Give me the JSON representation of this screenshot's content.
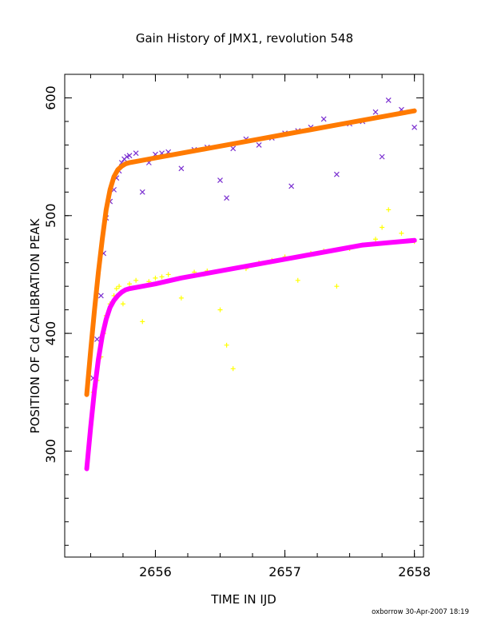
{
  "title": "Gain History of JMX1, revolution 548",
  "footer": "oxborrow 30-Apr-2007 18:19",
  "chart_data": {
    "type": "scatter",
    "title": "Gain History of JMX1, revolution 548",
    "xlabel": "TIME IN IJD",
    "ylabel": "POSITION OF Cd CALIBRATION PEAK",
    "xlim": [
      2655.3,
      2658.07
    ],
    "ylim": [
      210,
      620
    ],
    "xticks": [
      2656,
      2657,
      2658
    ],
    "yticks": [
      300,
      400,
      500,
      600
    ],
    "xtick_labels": [
      "2656",
      "2657",
      "2658"
    ],
    "ytick_labels": [
      "300",
      "400",
      "500",
      "600"
    ],
    "x_minor_step": 0.25,
    "y_minor_step": 20,
    "grid": false,
    "series": [
      {
        "marker": "x",
        "color": "#7a2fd0",
        "x": [
          2655.52,
          2655.55,
          2655.58,
          2655.6,
          2655.62,
          2655.65,
          2655.68,
          2655.7,
          2655.72,
          2655.74,
          2655.76,
          2655.78,
          2655.8,
          2655.85,
          2655.9,
          2655.95,
          2656.0,
          2656.05,
          2656.1,
          2656.2,
          2656.3,
          2656.4,
          2656.5,
          2656.55,
          2656.6,
          2656.7,
          2656.8,
          2656.9,
          2657.0,
          2657.05,
          2657.1,
          2657.2,
          2657.3,
          2657.4,
          2657.5,
          2657.6,
          2657.7,
          2657.75,
          2657.8,
          2657.9,
          2658.0
        ],
        "y": [
          362,
          395,
          432,
          468,
          498,
          512,
          522,
          532,
          538,
          545,
          548,
          550,
          551,
          553,
          520,
          545,
          552,
          553,
          554,
          540,
          556,
          558,
          530,
          515,
          557,
          565,
          560,
          566,
          570,
          525,
          572,
          575,
          582,
          535,
          578,
          580,
          588,
          550,
          598,
          590,
          575
        ]
      },
      {
        "marker": "+",
        "color": "#ffff00",
        "x": [
          2655.52,
          2655.55,
          2655.58,
          2655.6,
          2655.62,
          2655.65,
          2655.68,
          2655.7,
          2655.72,
          2655.75,
          2655.8,
          2655.85,
          2655.9,
          2655.95,
          2656.0,
          2656.05,
          2656.1,
          2656.2,
          2656.3,
          2656.4,
          2656.5,
          2656.55,
          2656.6,
          2656.7,
          2656.8,
          2656.9,
          2657.0,
          2657.1,
          2657.2,
          2657.3,
          2657.4,
          2657.5,
          2657.6,
          2657.7,
          2657.75,
          2657.8,
          2657.9,
          2658.0
        ],
        "y": [
          350,
          360,
          380,
          400,
          415,
          425,
          432,
          438,
          440,
          425,
          442,
          445,
          410,
          444,
          447,
          448,
          450,
          430,
          452,
          453,
          420,
          390,
          370,
          455,
          460,
          462,
          465,
          445,
          468,
          470,
          440,
          472,
          475,
          480,
          490,
          505,
          485,
          478
        ]
      }
    ],
    "fits": [
      {
        "color": "#ff7a00",
        "x": [
          2655.47,
          2655.5,
          2655.53,
          2655.56,
          2655.59,
          2655.62,
          2655.65,
          2655.68,
          2655.71,
          2655.74,
          2655.77,
          2655.8,
          2655.85,
          2655.9,
          2656.0,
          2656.2,
          2656.4,
          2656.6,
          2656.8,
          2657.0,
          2657.2,
          2657.4,
          2657.6,
          2657.8,
          2658.0
        ],
        "y": [
          348,
          385,
          420,
          452,
          480,
          505,
          522,
          533,
          539,
          542,
          544,
          545,
          546,
          547,
          549,
          553,
          557,
          561,
          565,
          569,
          573,
          577,
          581,
          585,
          589
        ]
      },
      {
        "color": "#ff00ff",
        "x": [
          2655.47,
          2655.5,
          2655.53,
          2655.56,
          2655.59,
          2655.62,
          2655.65,
          2655.68,
          2655.71,
          2655.74,
          2655.77,
          2655.8,
          2655.85,
          2655.9,
          2656.0,
          2656.2,
          2656.4,
          2656.6,
          2656.8,
          2657.0,
          2657.2,
          2657.4,
          2657.6,
          2657.8,
          2658.0
        ],
        "y": [
          285,
          320,
          352,
          378,
          398,
          412,
          422,
          428,
          432,
          435,
          437,
          438,
          439,
          440,
          442,
          447,
          451,
          455,
          459,
          463,
          467,
          471,
          475,
          477,
          479
        ]
      }
    ]
  }
}
